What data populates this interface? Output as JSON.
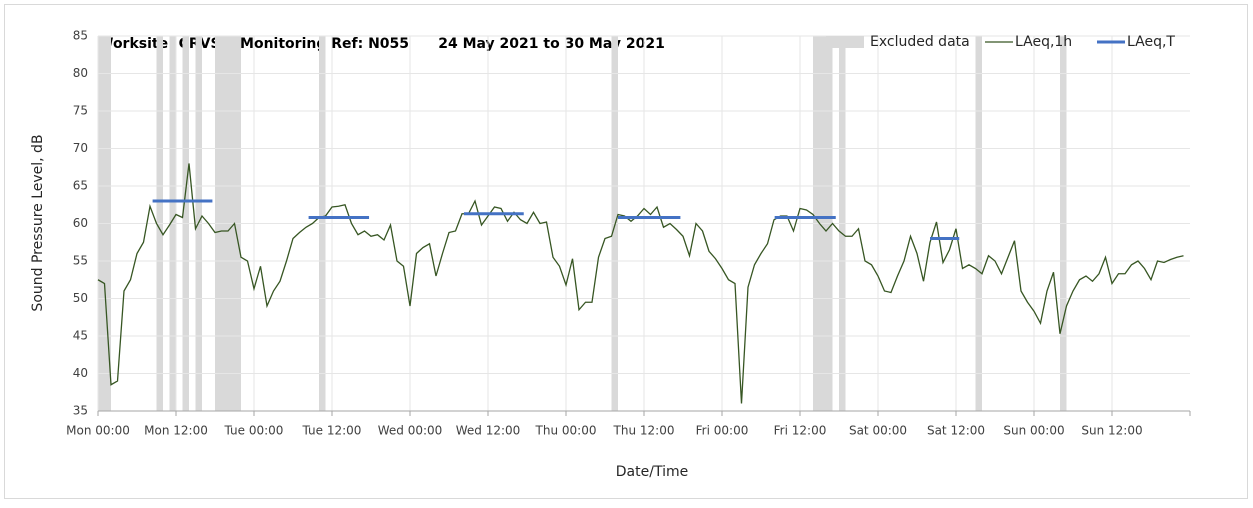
{
  "chart_data": {
    "type": "line",
    "title": "Worksite: CRVS    Monitoring Ref: N055      24 May 2021 to 30 May 2021",
    "xlabel": "Date/Time",
    "ylabel": "Sound Pressure Level, dB",
    "xlim": [
      0,
      168
    ],
    "ylim": [
      35,
      85
    ],
    "xticks": [
      {
        "value": 0,
        "label": "Mon 00:00"
      },
      {
        "value": 12,
        "label": "Mon 12:00"
      },
      {
        "value": 24,
        "label": "Tue 00:00"
      },
      {
        "value": 36,
        "label": "Tue 12:00"
      },
      {
        "value": 48,
        "label": "Wed 00:00"
      },
      {
        "value": 60,
        "label": "Wed 12:00"
      },
      {
        "value": 72,
        "label": "Thu 00:00"
      },
      {
        "value": 84,
        "label": "Thu 12:00"
      },
      {
        "value": 96,
        "label": "Fri 00:00"
      },
      {
        "value": 108,
        "label": "Fri 12:00"
      },
      {
        "value": 120,
        "label": "Sat 00:00"
      },
      {
        "value": 132,
        "label": "Sat 12:00"
      },
      {
        "value": 144,
        "label": "Sun 00:00"
      },
      {
        "value": 156,
        "label": "Sun 12:00"
      }
    ],
    "yticks": [
      35,
      40,
      45,
      50,
      55,
      60,
      65,
      70,
      75,
      80,
      85
    ],
    "grid": true,
    "legend": "top-right",
    "excluded": {
      "name": "Excluded data",
      "color": "#d9d9d9",
      "ranges": [
        [
          0,
          2
        ],
        [
          9,
          10
        ],
        [
          11,
          12
        ],
        [
          13,
          14
        ],
        [
          15,
          16
        ],
        [
          18,
          22
        ],
        [
          34,
          35
        ],
        [
          79,
          80
        ],
        [
          110,
          113
        ],
        [
          114,
          115
        ],
        [
          135,
          136
        ],
        [
          148,
          149
        ]
      ]
    },
    "x": [
      0,
      1,
      2,
      3,
      4,
      5,
      6,
      7,
      8,
      9,
      10,
      11,
      12,
      13,
      14,
      15,
      16,
      17,
      18,
      19,
      20,
      21,
      22,
      23,
      24,
      25,
      26,
      27,
      28,
      29,
      30,
      31,
      32,
      33,
      34,
      35,
      36,
      37,
      38,
      39,
      40,
      41,
      42,
      43,
      44,
      45,
      46,
      47,
      48,
      49,
      50,
      51,
      52,
      53,
      54,
      55,
      56,
      57,
      58,
      59,
      60,
      61,
      62,
      63,
      64,
      65,
      66,
      67,
      68,
      69,
      70,
      71,
      72,
      73,
      74,
      75,
      76,
      77,
      78,
      79,
      80,
      81,
      82,
      83,
      84,
      85,
      86,
      87,
      88,
      89,
      90,
      91,
      92,
      93,
      94,
      95,
      96,
      97,
      98,
      99,
      100,
      101,
      102,
      103,
      104,
      105,
      106,
      107,
      108,
      109,
      110,
      111,
      112,
      113,
      114,
      115,
      116,
      117,
      118,
      119,
      120,
      121,
      122,
      123,
      124,
      125,
      126,
      127,
      128,
      129,
      130,
      131,
      132,
      133,
      134,
      135,
      136,
      137,
      138,
      139,
      140,
      141,
      142,
      143,
      144,
      145,
      146,
      147,
      148,
      149,
      150,
      151,
      152,
      153,
      154,
      155,
      156,
      157,
      158,
      159,
      160,
      161,
      162,
      163,
      164,
      165,
      166,
      167
    ],
    "series": [
      {
        "name": "LAeq,1h",
        "color": "#375623",
        "values": [
          52.5,
          52,
          38.5,
          39,
          51,
          52.5,
          56,
          57.5,
          62.3,
          60,
          58.5,
          59.8,
          61.2,
          60.8,
          68,
          59.3,
          61,
          60,
          58.8,
          59,
          59,
          60,
          55.5,
          55,
          51.3,
          54.3,
          49,
          51,
          52.3,
          55,
          58,
          58.8,
          59.5,
          60,
          60.8,
          61,
          62.2,
          62.3,
          62.5,
          60,
          58.5,
          59,
          58.3,
          58.5,
          57.8,
          59.8,
          55,
          54.3,
          49,
          56,
          56.8,
          57.3,
          53,
          56,
          58.8,
          59,
          61.3,
          61.3,
          63,
          59.8,
          61,
          62.2,
          62,
          60.3,
          61.5,
          60.5,
          60,
          61.5,
          60,
          60.2,
          55.5,
          54.3,
          51.8,
          55.3,
          48.5,
          49.5,
          49.5,
          55.5,
          58,
          58.3,
          61.2,
          61,
          60.3,
          61,
          62,
          61.2,
          62.2,
          59.5,
          60,
          59.2,
          58.3,
          55.7,
          60,
          59,
          56.3,
          55.3,
          54,
          52.5,
          52,
          36,
          51.5,
          54.5,
          56,
          57.3,
          60.5,
          61,
          61,
          59,
          62,
          61.8,
          61.2,
          60,
          59,
          60,
          59,
          58.3,
          58.3,
          59.3,
          55,
          54.5,
          53,
          51,
          50.8,
          53,
          55,
          58.3,
          56,
          52.3,
          57.5,
          60.2,
          54.8,
          56.5,
          59.3,
          54,
          54.5,
          54,
          53.3,
          55.7,
          55,
          53.3,
          55.5,
          57.7,
          51,
          49.5,
          48.3,
          46.7,
          51,
          53.5,
          45.3,
          49,
          51,
          52.5,
          53,
          52.3,
          53.3,
          55.5,
          52,
          53.3,
          53.3,
          54.5,
          55,
          54,
          52.5,
          55,
          54.8,
          55.2,
          55.5,
          55.7
        ]
      },
      {
        "name": "LAeq,T",
        "color": "#4472c4",
        "segments": [
          {
            "start": 8.4,
            "end": 17.6,
            "value": 63
          },
          {
            "start": 32.4,
            "end": 41.7,
            "value": 60.8
          },
          {
            "start": 56.3,
            "end": 65.5,
            "value": 61.3
          },
          {
            "start": 80,
            "end": 89.6,
            "value": 60.8
          },
          {
            "start": 104.1,
            "end": 113.5,
            "value": 60.8
          },
          {
            "start": 128,
            "end": 132.5,
            "value": 58
          }
        ]
      }
    ]
  }
}
